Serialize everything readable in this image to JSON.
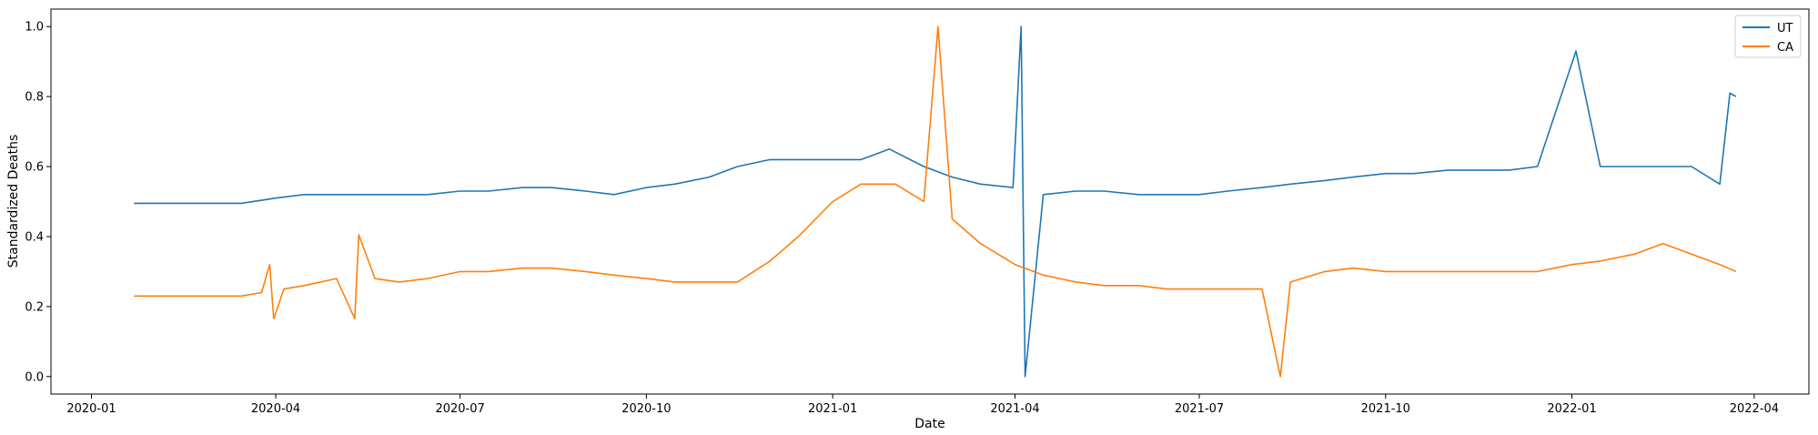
{
  "chart_data": {
    "type": "line",
    "title": "",
    "xlabel": "Date",
    "ylabel": "Standardized Deaths",
    "xlim": [
      "2019-12-12",
      "2022-04-28"
    ],
    "ylim": [
      -0.05,
      1.05
    ],
    "x_ticks": [
      "2020-01",
      "2020-04",
      "2020-07",
      "2020-10",
      "2021-01",
      "2021-04",
      "2021-07",
      "2021-10",
      "2022-01",
      "2022-04"
    ],
    "y_ticks": [
      "0.0",
      "0.2",
      "0.4",
      "0.6",
      "0.8",
      "1.0"
    ],
    "legend_position": "top-right",
    "grid": false,
    "series": [
      {
        "name": "UT",
        "color": "#1f77b4",
        "points": [
          [
            "2020-01-22",
            0.495
          ],
          [
            "2020-03-15",
            0.495
          ],
          [
            "2020-04-01",
            0.51
          ],
          [
            "2020-04-15",
            0.52
          ],
          [
            "2020-05-01",
            0.52
          ],
          [
            "2020-05-15",
            0.52
          ],
          [
            "2020-06-01",
            0.52
          ],
          [
            "2020-06-15",
            0.52
          ],
          [
            "2020-07-01",
            0.53
          ],
          [
            "2020-07-15",
            0.53
          ],
          [
            "2020-08-01",
            0.54
          ],
          [
            "2020-08-15",
            0.54
          ],
          [
            "2020-09-01",
            0.53
          ],
          [
            "2020-09-15",
            0.52
          ],
          [
            "2020-10-01",
            0.54
          ],
          [
            "2020-10-15",
            0.55
          ],
          [
            "2020-11-01",
            0.57
          ],
          [
            "2020-11-15",
            0.6
          ],
          [
            "2020-12-01",
            0.62
          ],
          [
            "2020-12-15",
            0.62
          ],
          [
            "2021-01-01",
            0.62
          ],
          [
            "2021-01-15",
            0.62
          ],
          [
            "2021-01-29",
            0.65
          ],
          [
            "2021-02-15",
            0.6
          ],
          [
            "2021-03-01",
            0.57
          ],
          [
            "2021-03-15",
            0.55
          ],
          [
            "2021-03-31",
            0.54
          ],
          [
            "2021-04-04",
            1.0
          ],
          [
            "2021-04-06",
            0.0
          ],
          [
            "2021-04-15",
            0.52
          ],
          [
            "2021-05-01",
            0.53
          ],
          [
            "2021-05-15",
            0.53
          ],
          [
            "2021-06-01",
            0.52
          ],
          [
            "2021-06-15",
            0.52
          ],
          [
            "2021-07-01",
            0.52
          ],
          [
            "2021-07-15",
            0.53
          ],
          [
            "2021-08-01",
            0.54
          ],
          [
            "2021-08-15",
            0.55
          ],
          [
            "2021-09-01",
            0.56
          ],
          [
            "2021-09-15",
            0.57
          ],
          [
            "2021-10-01",
            0.58
          ],
          [
            "2021-10-15",
            0.58
          ],
          [
            "2021-11-01",
            0.59
          ],
          [
            "2021-11-15",
            0.59
          ],
          [
            "2021-12-01",
            0.59
          ],
          [
            "2021-12-15",
            0.6
          ],
          [
            "2022-01-03",
            0.93
          ],
          [
            "2022-01-15",
            0.6
          ],
          [
            "2022-02-01",
            0.6
          ],
          [
            "2022-02-15",
            0.6
          ],
          [
            "2022-03-01",
            0.6
          ],
          [
            "2022-03-15",
            0.55
          ],
          [
            "2022-03-20",
            0.81
          ],
          [
            "2022-03-23",
            0.8
          ]
        ]
      },
      {
        "name": "CA",
        "color": "#ff7f0e",
        "points": [
          [
            "2020-01-22",
            0.23
          ],
          [
            "2020-03-15",
            0.23
          ],
          [
            "2020-03-25",
            0.24
          ],
          [
            "2020-03-29",
            0.32
          ],
          [
            "2020-03-31",
            0.165
          ],
          [
            "2020-04-05",
            0.25
          ],
          [
            "2020-04-15",
            0.26
          ],
          [
            "2020-05-01",
            0.28
          ],
          [
            "2020-05-10",
            0.165
          ],
          [
            "2020-05-12",
            0.405
          ],
          [
            "2020-05-20",
            0.28
          ],
          [
            "2020-06-01",
            0.27
          ],
          [
            "2020-06-15",
            0.28
          ],
          [
            "2020-07-01",
            0.3
          ],
          [
            "2020-07-15",
            0.3
          ],
          [
            "2020-08-01",
            0.31
          ],
          [
            "2020-08-15",
            0.31
          ],
          [
            "2020-09-01",
            0.3
          ],
          [
            "2020-09-15",
            0.29
          ],
          [
            "2020-10-01",
            0.28
          ],
          [
            "2020-10-15",
            0.27
          ],
          [
            "2020-11-01",
            0.27
          ],
          [
            "2020-11-15",
            0.27
          ],
          [
            "2020-12-01",
            0.33
          ],
          [
            "2020-12-15",
            0.4
          ],
          [
            "2021-01-01",
            0.5
          ],
          [
            "2021-01-15",
            0.55
          ],
          [
            "2021-02-01",
            0.55
          ],
          [
            "2021-02-15",
            0.5
          ],
          [
            "2021-02-22",
            1.0
          ],
          [
            "2021-03-01",
            0.45
          ],
          [
            "2021-03-15",
            0.38
          ],
          [
            "2021-04-01",
            0.32
          ],
          [
            "2021-04-15",
            0.29
          ],
          [
            "2021-05-01",
            0.27
          ],
          [
            "2021-05-15",
            0.26
          ],
          [
            "2021-06-01",
            0.26
          ],
          [
            "2021-06-15",
            0.25
          ],
          [
            "2021-07-01",
            0.25
          ],
          [
            "2021-07-15",
            0.25
          ],
          [
            "2021-08-01",
            0.25
          ],
          [
            "2021-08-10",
            0.0
          ],
          [
            "2021-08-15",
            0.27
          ],
          [
            "2021-09-01",
            0.3
          ],
          [
            "2021-09-15",
            0.31
          ],
          [
            "2021-10-01",
            0.3
          ],
          [
            "2021-10-15",
            0.3
          ],
          [
            "2021-11-01",
            0.3
          ],
          [
            "2021-11-15",
            0.3
          ],
          [
            "2021-12-01",
            0.3
          ],
          [
            "2021-12-15",
            0.3
          ],
          [
            "2022-01-01",
            0.32
          ],
          [
            "2022-01-15",
            0.33
          ],
          [
            "2022-02-01",
            0.35
          ],
          [
            "2022-02-15",
            0.38
          ],
          [
            "2022-03-01",
            0.35
          ],
          [
            "2022-03-15",
            0.32
          ],
          [
            "2022-03-23",
            0.3
          ]
        ]
      }
    ]
  }
}
